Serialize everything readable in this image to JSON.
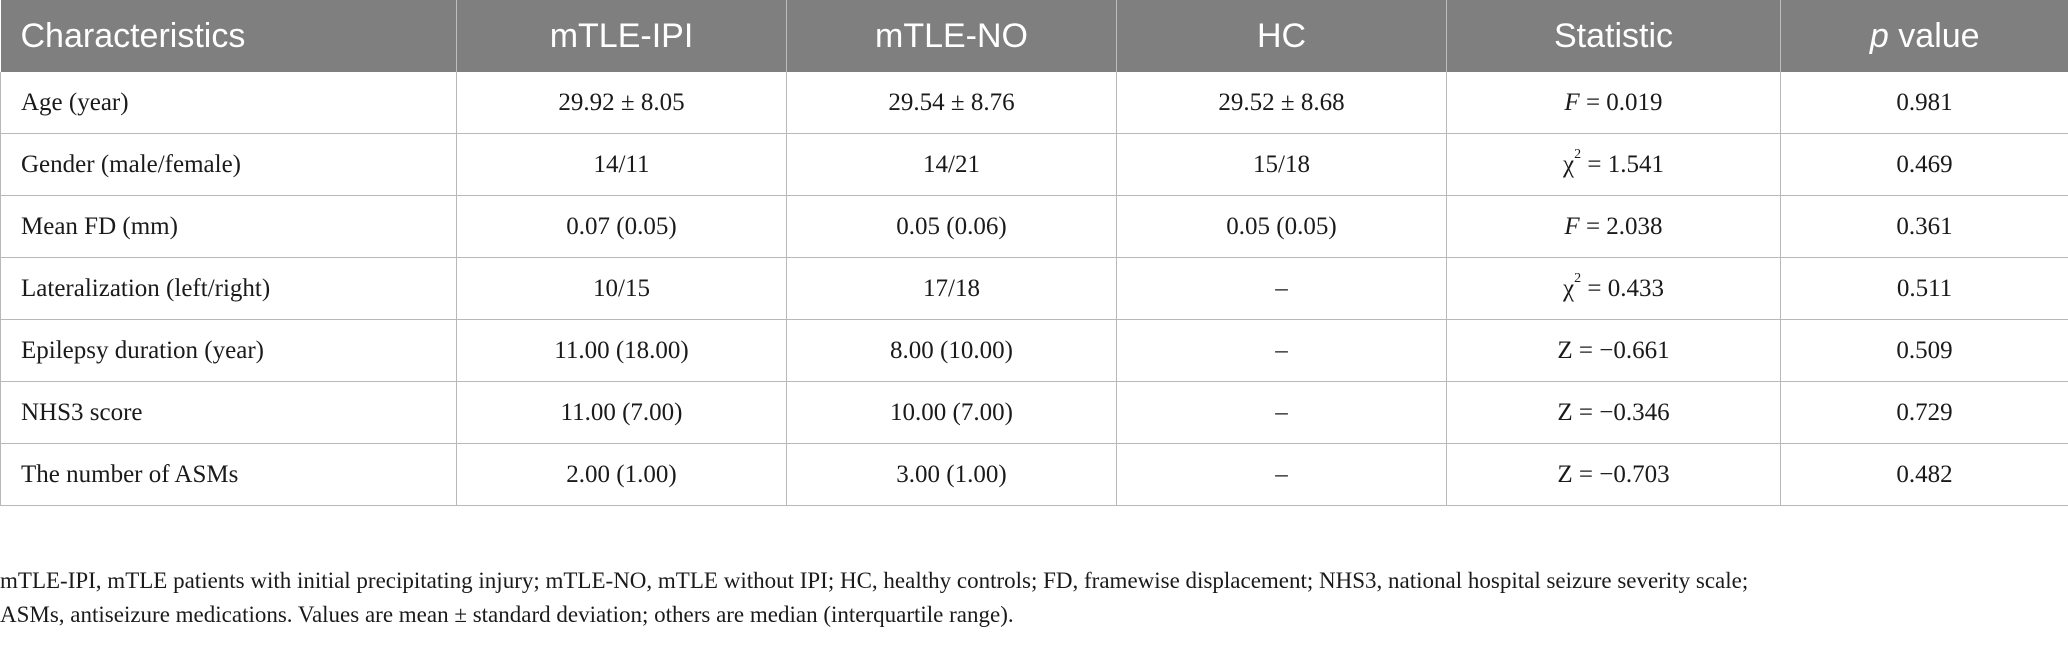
{
  "table": {
    "headers": {
      "c0": "Characteristics",
      "c1": "mTLE-IPI",
      "c2": "mTLE-NO",
      "c3": "HC",
      "c4": "Statistic",
      "c5_italic": "p",
      "c5_rest": " value"
    },
    "rows": [
      {
        "label": "Age (year)",
        "ipi": "29.92 ± 8.05",
        "no": "29.54 ± 8.76",
        "hc": "29.52 ± 8.68",
        "stat_sym": "F",
        "stat_sup": "",
        "stat_rest": " = 0.019",
        "p": "0.981"
      },
      {
        "label": "Gender (male/female)",
        "ipi": "14/11",
        "no": "14/21",
        "hc": "15/18",
        "stat_sym": "χ",
        "stat_sup": "2",
        "stat_rest": " = 1.541",
        "p": "0.469"
      },
      {
        "label": "Mean FD (mm)",
        "ipi": "0.07 (0.05)",
        "no": "0.05 (0.06)",
        "hc": "0.05 (0.05)",
        "stat_sym": "F",
        "stat_sup": "",
        "stat_rest": " = 2.038",
        "p": "0.361"
      },
      {
        "label": "Lateralization (left/right)",
        "ipi": "10/15",
        "no": "17/18",
        "hc": "–",
        "stat_sym": "χ",
        "stat_sup": "2",
        "stat_rest": " = 0.433",
        "p": "0.511"
      },
      {
        "label": "Epilepsy duration (year)",
        "ipi": "11.00 (18.00)",
        "no": "8.00 (10.00)",
        "hc": "–",
        "stat_sym": "Z",
        "stat_sup": "",
        "stat_rest": " = −0.661",
        "p": "0.509"
      },
      {
        "label": "NHS3 score",
        "ipi": "11.00 (7.00)",
        "no": "10.00 (7.00)",
        "hc": "–",
        "stat_sym": "Z",
        "stat_sup": "",
        "stat_rest": " = −0.346",
        "p": "0.729"
      },
      {
        "label": "The number of ASMs",
        "ipi": "2.00 (1.00)",
        "no": "3.00 (1.00)",
        "hc": "–",
        "stat_sym": "Z",
        "stat_sup": "",
        "stat_rest": " = −0.703",
        "p": "0.482"
      }
    ]
  },
  "footnote": {
    "line1": "mTLE-IPI, mTLE patients with initial precipitating injury; mTLE-NO, mTLE without IPI; HC, healthy controls; FD, framewise displacement; NHS3, national hospital seizure severity scale;",
    "line2": "ASMs, antiseizure medications. Values are mean ± standard deviation; others are median (interquartile range)."
  },
  "colors": {
    "header_bg": "#7f7f7f",
    "header_text": "#ffffff",
    "border": "#b8b8b8"
  }
}
